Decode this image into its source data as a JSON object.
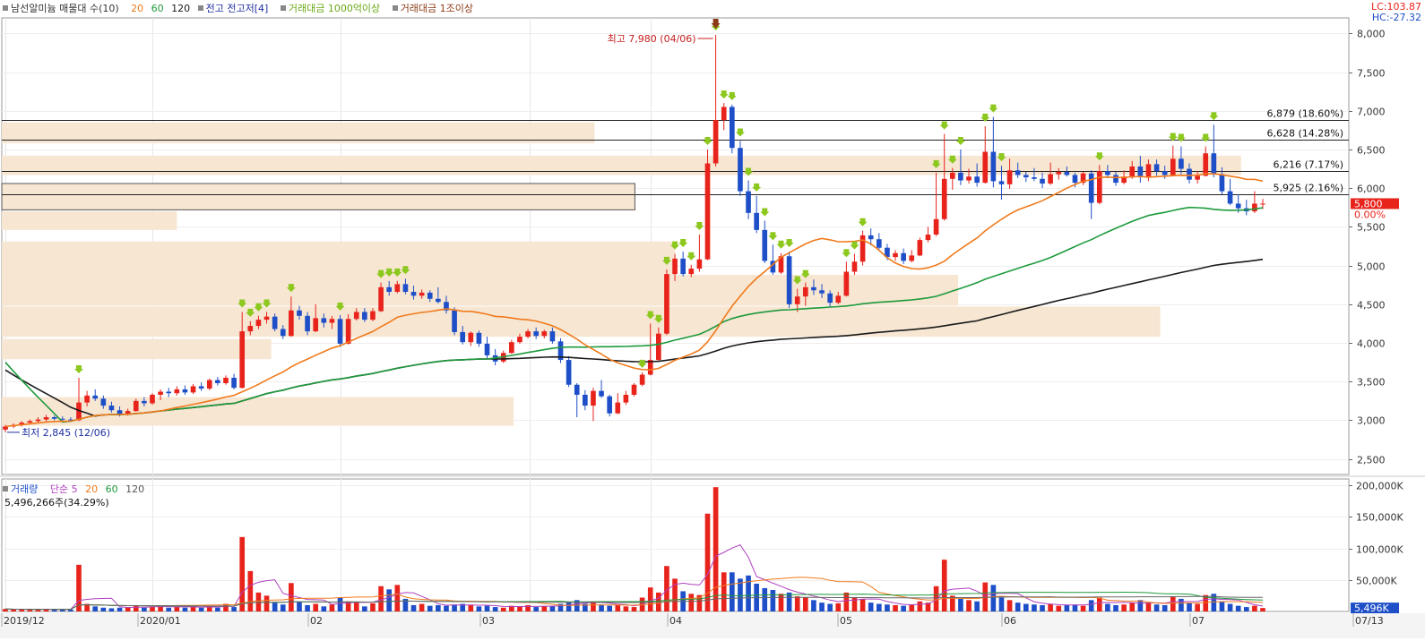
{
  "legend": {
    "stock_name": "남선알미늄 매물대 수(10)",
    "ma_20": "20",
    "ma_60": "60",
    "ma_120": "120",
    "high_low_label": "전고  전고저[4]",
    "vol_1000": "거래대금 1000억이상",
    "vol_1tril": "거래대금 1조이상"
  },
  "lc": "LC:103.87",
  "hc": "HC:-27.32",
  "volume_legend": {
    "label": "거래량",
    "simple": "단순 5",
    "ma20": "20",
    "ma60": "60",
    "ma120": "120",
    "value": "5,496,266주(34.29%)"
  },
  "colors": {
    "up": "#e8231c",
    "down": "#1e4fc8",
    "ma5": "#b040c0",
    "ma20": "#f07a1c",
    "ma60": "#1e9a3c",
    "ma120": "#1a1a1a",
    "zone": "#f7e6d2",
    "arrow": "#8cc81e"
  },
  "chart_data": {
    "type": "candlestick",
    "price_axis": {
      "ticks": [
        "8,000",
        "7,500",
        "7,000",
        "6,500",
        "6,000",
        "5,500",
        "5,000",
        "4,500",
        "4,000",
        "3,500",
        "3,000",
        "2,500"
      ],
      "range": [
        2300,
        8200
      ]
    },
    "volume_axis": {
      "ticks": [
        "200,000K",
        "150,000K",
        "100,000K",
        "50,000K"
      ],
      "range": [
        0,
        210000
      ]
    },
    "x_labels": [
      "2019/12",
      "2020/01",
      "02",
      "03",
      "04",
      "05",
      "06",
      "07",
      "07/13"
    ],
    "current_price": "5,800",
    "current_change": "0.00%",
    "current_volume": "5,496K",
    "current_volume_pct": "34.29%",
    "annotations": {
      "high": "최고 7,980 (04/06)",
      "low": "최저 2,845 (12/06)"
    },
    "levels": [
      {
        "price": 6879,
        "label": "6,879 (18.60%)"
      },
      {
        "price": 6628,
        "label": "6,628 (14.28%)"
      },
      {
        "price": 6216,
        "label": "6,216 (7.17%)"
      },
      {
        "price": 5925,
        "label": "5,925 (2.16%)"
      }
    ],
    "volume_profile": [
      {
        "lo": 6580,
        "hi": 6850,
        "len": 0.44
      },
      {
        "lo": 6170,
        "hi": 6420,
        "len": 0.92
      },
      {
        "lo": 5720,
        "hi": 6060,
        "len": 0.47
      },
      {
        "lo": 5460,
        "hi": 5700,
        "len": 0.13
      },
      {
        "lo": 4880,
        "hi": 5310,
        "len": 0.5
      },
      {
        "lo": 4480,
        "hi": 4880,
        "len": 0.71
      },
      {
        "lo": 4080,
        "hi": 4470,
        "len": 0.86
      },
      {
        "lo": 3790,
        "hi": 4050,
        "len": 0.2
      },
      {
        "lo": 2930,
        "hi": 3300,
        "len": 0.38
      }
    ],
    "candles": [
      [
        2880,
        2940,
        2845,
        2920,
        4000
      ],
      [
        2920,
        2960,
        2900,
        2940,
        3000
      ],
      [
        2940,
        2990,
        2920,
        2970,
        3500
      ],
      [
        2970,
        3010,
        2950,
        2990,
        3000
      ],
      [
        2990,
        3040,
        2970,
        3010,
        3500
      ],
      [
        3010,
        3070,
        2980,
        3040,
        4000
      ],
      [
        3040,
        3060,
        3000,
        3020,
        3000
      ],
      [
        3020,
        3050,
        2990,
        3010,
        3500
      ],
      [
        3010,
        3040,
        2980,
        3000,
        3000
      ],
      [
        3000,
        3550,
        2990,
        3230,
        74000
      ],
      [
        3230,
        3380,
        3180,
        3320,
        12000
      ],
      [
        3320,
        3400,
        3250,
        3280,
        8000
      ],
      [
        3280,
        3320,
        3150,
        3190,
        6000
      ],
      [
        3190,
        3240,
        3100,
        3130,
        5000
      ],
      [
        3130,
        3180,
        3050,
        3080,
        6000
      ],
      [
        3080,
        3150,
        3060,
        3120,
        7000
      ],
      [
        3120,
        3280,
        3110,
        3250,
        9000
      ],
      [
        3250,
        3300,
        3180,
        3220,
        6000
      ],
      [
        3220,
        3350,
        3200,
        3330,
        8000
      ],
      [
        3330,
        3400,
        3260,
        3370,
        9000
      ],
      [
        3370,
        3420,
        3300,
        3350,
        6000
      ],
      [
        3350,
        3440,
        3320,
        3400,
        7000
      ],
      [
        3400,
        3450,
        3330,
        3360,
        6000
      ],
      [
        3360,
        3470,
        3340,
        3440,
        8000
      ],
      [
        3440,
        3490,
        3380,
        3410,
        6000
      ],
      [
        3410,
        3540,
        3390,
        3520,
        9000
      ],
      [
        3520,
        3560,
        3450,
        3480,
        6000
      ],
      [
        3480,
        3580,
        3460,
        3550,
        12000
      ],
      [
        3550,
        3600,
        3400,
        3420,
        7000
      ],
      [
        3420,
        4400,
        3410,
        4150,
        118000
      ],
      [
        4150,
        4280,
        4100,
        4220,
        64000
      ],
      [
        4220,
        4350,
        4180,
        4300,
        30000
      ],
      [
        4300,
        4400,
        4250,
        4340,
        25000
      ],
      [
        4340,
        4380,
        4150,
        4180,
        14000
      ],
      [
        4180,
        4230,
        4050,
        4090,
        11000
      ],
      [
        4090,
        4600,
        4080,
        4420,
        45000
      ],
      [
        4420,
        4480,
        4300,
        4350,
        15000
      ],
      [
        4350,
        4400,
        4100,
        4150,
        10000
      ],
      [
        4150,
        4500,
        4140,
        4320,
        12000
      ],
      [
        4320,
        4380,
        4200,
        4260,
        8000
      ],
      [
        4260,
        4350,
        4180,
        4310,
        11000
      ],
      [
        4310,
        4360,
        3950,
        3990,
        22000
      ],
      [
        3990,
        4370,
        3980,
        4310,
        16000
      ],
      [
        4310,
        4450,
        4290,
        4400,
        15000
      ],
      [
        4400,
        4450,
        4270,
        4300,
        8000
      ],
      [
        4300,
        4450,
        4280,
        4410,
        13000
      ],
      [
        4410,
        4780,
        4400,
        4720,
        40000
      ],
      [
        4720,
        4800,
        4610,
        4660,
        35000
      ],
      [
        4660,
        4800,
        4640,
        4760,
        42000
      ],
      [
        4760,
        4830,
        4630,
        4660,
        20000
      ],
      [
        4660,
        4740,
        4560,
        4610,
        10000
      ],
      [
        4610,
        4690,
        4570,
        4650,
        12000
      ],
      [
        4650,
        4680,
        4530,
        4570,
        9000
      ],
      [
        4570,
        4720,
        4510,
        4530,
        10000
      ],
      [
        4530,
        4610,
        4380,
        4420,
        9000
      ],
      [
        4420,
        4460,
        4100,
        4140,
        11000
      ],
      [
        4140,
        4220,
        3980,
        4010,
        12000
      ],
      [
        4010,
        4150,
        3960,
        4130,
        10000
      ],
      [
        4130,
        4160,
        3950,
        3990,
        8000
      ],
      [
        3990,
        4080,
        3800,
        3840,
        9000
      ],
      [
        3840,
        3920,
        3710,
        3760,
        7000
      ],
      [
        3760,
        3900,
        3740,
        3870,
        6000
      ],
      [
        3870,
        4040,
        3860,
        4010,
        9000
      ],
      [
        4010,
        4120,
        3990,
        4080,
        8000
      ],
      [
        4080,
        4180,
        4060,
        4150,
        10000
      ],
      [
        4150,
        4200,
        4050,
        4090,
        7000
      ],
      [
        4090,
        4170,
        4060,
        4150,
        8000
      ],
      [
        4150,
        4200,
        3990,
        4020,
        9000
      ],
      [
        4020,
        4060,
        3740,
        3780,
        12000
      ],
      [
        3780,
        3830,
        3430,
        3460,
        14000
      ],
      [
        3460,
        3480,
        3040,
        3330,
        18000
      ],
      [
        3330,
        3390,
        3130,
        3190,
        12000
      ],
      [
        3190,
        3420,
        2990,
        3380,
        16000
      ],
      [
        3380,
        3520,
        3290,
        3310,
        11000
      ],
      [
        3310,
        3330,
        3050,
        3090,
        9000
      ],
      [
        3090,
        3350,
        3080,
        3230,
        10000
      ],
      [
        3230,
        3380,
        3200,
        3330,
        8000
      ],
      [
        3330,
        3480,
        3310,
        3460,
        7000
      ],
      [
        3460,
        3620,
        3440,
        3590,
        22000
      ],
      [
        3590,
        4250,
        3580,
        3780,
        38000
      ],
      [
        3780,
        4200,
        3770,
        4120,
        30000
      ],
      [
        4120,
        4950,
        4100,
        4890,
        72000
      ],
      [
        4890,
        5150,
        4800,
        5090,
        52000
      ],
      [
        5090,
        5180,
        4860,
        4890,
        32000
      ],
      [
        4890,
        5010,
        4850,
        4960,
        28000
      ],
      [
        4960,
        5400,
        4920,
        5080,
        26000
      ],
      [
        5080,
        6500,
        5070,
        6320,
        155000
      ],
      [
        6320,
        7980,
        6280,
        6880,
        197000
      ],
      [
        6880,
        7100,
        6750,
        7050,
        62000
      ],
      [
        7050,
        7080,
        6450,
        6520,
        62000
      ],
      [
        6520,
        6610,
        5900,
        5960,
        52000
      ],
      [
        5960,
        6100,
        5600,
        5680,
        57000
      ],
      [
        5680,
        5900,
        5420,
        5460,
        44000
      ],
      [
        5460,
        5580,
        5030,
        5060,
        37000
      ],
      [
        5060,
        5270,
        4880,
        4910,
        34000
      ],
      [
        4910,
        5160,
        4890,
        5120,
        28000
      ],
      [
        5120,
        5180,
        4450,
        4500,
        30000
      ],
      [
        4500,
        4700,
        4400,
        4600,
        24000
      ],
      [
        4600,
        4780,
        4480,
        4720,
        22000
      ],
      [
        4720,
        4820,
        4620,
        4680,
        18000
      ],
      [
        4680,
        4760,
        4580,
        4640,
        14000
      ],
      [
        4640,
        4680,
        4470,
        4520,
        12000
      ],
      [
        4520,
        4660,
        4500,
        4610,
        13000
      ],
      [
        4610,
        5050,
        4600,
        4920,
        30000
      ],
      [
        4920,
        5150,
        4880,
        5050,
        22000
      ],
      [
        5050,
        5450,
        5000,
        5390,
        20000
      ],
      [
        5390,
        5480,
        5260,
        5340,
        14000
      ],
      [
        5340,
        5420,
        5190,
        5230,
        12000
      ],
      [
        5230,
        5280,
        5070,
        5110,
        11000
      ],
      [
        5110,
        5200,
        5060,
        5160,
        10000
      ],
      [
        5160,
        5220,
        5020,
        5060,
        9000
      ],
      [
        5060,
        5200,
        5040,
        5130,
        11000
      ],
      [
        5130,
        5360,
        5120,
        5330,
        16000
      ],
      [
        5330,
        5500,
        5300,
        5400,
        14000
      ],
      [
        5400,
        6200,
        5380,
        5600,
        40000
      ],
      [
        5600,
        6700,
        5580,
        6120,
        82000
      ],
      [
        6120,
        6260,
        5980,
        6200,
        25000
      ],
      [
        6200,
        6500,
        6040,
        6100,
        20000
      ],
      [
        6100,
        6250,
        6060,
        6150,
        18000
      ],
      [
        6150,
        6320,
        6020,
        6070,
        16000
      ],
      [
        6070,
        6800,
        6060,
        6470,
        46000
      ],
      [
        6470,
        6920,
        6010,
        6090,
        42000
      ],
      [
        6090,
        6290,
        5850,
        6050,
        22000
      ],
      [
        6050,
        6380,
        5990,
        6230,
        18000
      ],
      [
        6230,
        6330,
        6130,
        6170,
        14000
      ],
      [
        6170,
        6210,
        6080,
        6140,
        12000
      ],
      [
        6140,
        6260,
        6090,
        6120,
        11000
      ],
      [
        6120,
        6200,
        6000,
        6060,
        10000
      ],
      [
        6060,
        6330,
        6040,
        6180,
        12000
      ],
      [
        6180,
        6260,
        6110,
        6210,
        9000
      ],
      [
        6210,
        6280,
        6150,
        6170,
        10000
      ],
      [
        6170,
        6200,
        6010,
        6070,
        11000
      ],
      [
        6070,
        6210,
        6040,
        6190,
        9000
      ],
      [
        6190,
        6230,
        5600,
        5810,
        18000
      ],
      [
        5810,
        6300,
        5790,
        6220,
        22000
      ],
      [
        6220,
        6300,
        6130,
        6170,
        12000
      ],
      [
        6170,
        6210,
        6030,
        6070,
        10000
      ],
      [
        6070,
        6230,
        6050,
        6150,
        11000
      ],
      [
        6150,
        6350,
        6120,
        6280,
        14000
      ],
      [
        6280,
        6420,
        6070,
        6150,
        18000
      ],
      [
        6150,
        6370,
        6090,
        6310,
        14000
      ],
      [
        6310,
        6370,
        6160,
        6220,
        11000
      ],
      [
        6220,
        6290,
        6120,
        6170,
        10000
      ],
      [
        6170,
        6550,
        6150,
        6380,
        24000
      ],
      [
        6380,
        6540,
        6180,
        6250,
        20000
      ],
      [
        6250,
        6320,
        6060,
        6110,
        14000
      ],
      [
        6110,
        6220,
        6060,
        6160,
        12000
      ],
      [
        6160,
        6540,
        6150,
        6450,
        26000
      ],
      [
        6450,
        6820,
        6140,
        6180,
        28000
      ],
      [
        6180,
        6270,
        5920,
        5960,
        16000
      ],
      [
        5960,
        6120,
        5780,
        5800,
        12000
      ],
      [
        5800,
        5920,
        5680,
        5740,
        9000
      ],
      [
        5740,
        5850,
        5650,
        5700,
        7000
      ],
      [
        5700,
        5960,
        5680,
        5800,
        9000
      ],
      [
        5800,
        5860,
        5730,
        5800,
        5496
      ]
    ]
  }
}
